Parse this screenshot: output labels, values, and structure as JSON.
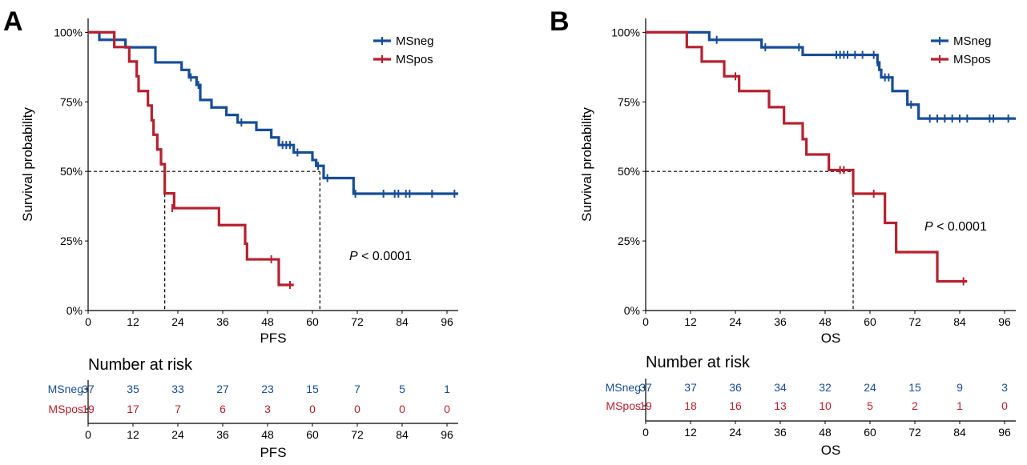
{
  "colors": {
    "MSneg": "#174d97",
    "MSpos": "#b6202e",
    "axis": "#000000"
  },
  "chart_data": [
    {
      "panel_label": "A",
      "type": "line",
      "ylabel": "Survival probability",
      "xlabel": "PFS",
      "xlim": [
        0,
        99
      ],
      "xticks": [
        "0",
        "12",
        "24",
        "36",
        "48",
        "60",
        "72",
        "84",
        "96"
      ],
      "ylim": [
        0,
        1.05
      ],
      "yticks": [
        "0%",
        "25%",
        "50%",
        "75%",
        "100%"
      ],
      "legend_position": "top-right",
      "p_value": {
        "label": "P",
        "value": " < 0.0001"
      },
      "median_lines": [
        20.5,
        62
      ],
      "series": [
        {
          "name": "MSneg",
          "color": "#174d97",
          "steps": [
            [
              0,
              1.0
            ],
            [
              3,
              0.973
            ],
            [
              10,
              0.946
            ],
            [
              18,
              0.892
            ],
            [
              25,
              0.865
            ],
            [
              27,
              0.838
            ],
            [
              29,
              0.811
            ],
            [
              30,
              0.757
            ],
            [
              33,
              0.73
            ],
            [
              37,
              0.703
            ],
            [
              40,
              0.676
            ],
            [
              45,
              0.649
            ],
            [
              49,
              0.622
            ],
            [
              51,
              0.595
            ],
            [
              55,
              0.568
            ],
            [
              60,
              0.541
            ],
            [
              61,
              0.52
            ],
            [
              63,
              0.476
            ],
            [
              71,
              0.42
            ]
          ],
          "end": 99,
          "censors": [
            [
              27.5,
              0.838
            ],
            [
              29.5,
              0.811
            ],
            [
              41,
              0.676
            ],
            [
              52,
              0.595
            ],
            [
              53,
              0.595
            ],
            [
              54,
              0.595
            ],
            [
              56,
              0.568
            ],
            [
              61.5,
              0.52
            ],
            [
              64,
              0.476
            ],
            [
              71.5,
              0.42
            ],
            [
              79,
              0.42
            ],
            [
              82,
              0.42
            ],
            [
              83,
              0.42
            ],
            [
              85,
              0.42
            ],
            [
              86,
              0.42
            ],
            [
              92,
              0.42
            ],
            [
              98,
              0.42
            ]
          ]
        },
        {
          "name": "MSpos",
          "color": "#b6202e",
          "steps": [
            [
              0,
              1.0
            ],
            [
              7,
              0.947
            ],
            [
              11,
              0.895
            ],
            [
              13,
              0.842
            ],
            [
              13.5,
              0.789
            ],
            [
              16,
              0.737
            ],
            [
              17,
              0.684
            ],
            [
              17.5,
              0.632
            ],
            [
              18.5,
              0.579
            ],
            [
              19.5,
              0.526
            ],
            [
              20.5,
              0.421
            ],
            [
              23,
              0.368
            ],
            [
              35,
              0.307
            ],
            [
              42,
              0.24
            ],
            [
              42.5,
              0.184
            ],
            [
              51,
              0.092
            ]
          ],
          "end": 55,
          "censors": [
            [
              22.5,
              0.368
            ],
            [
              49,
              0.184
            ],
            [
              54,
              0.092
            ]
          ]
        }
      ],
      "risk_table": {
        "title": "Number at risk",
        "xlabel": "PFS",
        "xticks": [
          "0",
          "12",
          "24",
          "36",
          "48",
          "60",
          "72",
          "84",
          "96"
        ],
        "rows": [
          {
            "name": "MSneg",
            "values": [
              "37",
              "35",
              "33",
              "27",
              "23",
              "15",
              "7",
              "5",
              "1"
            ]
          },
          {
            "name": "MSpos",
            "values": [
              "19",
              "17",
              "7",
              "6",
              "3",
              "0",
              "0",
              "0",
              "0"
            ]
          }
        ]
      }
    },
    {
      "panel_label": "B",
      "type": "line",
      "ylabel": "Survival probability",
      "xlabel": "OS",
      "xlim": [
        0,
        99
      ],
      "xticks": [
        "0",
        "12",
        "24",
        "36",
        "48",
        "60",
        "72",
        "84",
        "96"
      ],
      "ylim": [
        0,
        1.05
      ],
      "yticks": [
        "0%",
        "25%",
        "50%",
        "75%",
        "100%"
      ],
      "legend_position": "top-right",
      "p_value": {
        "label": "P",
        "value": " < 0.0001"
      },
      "median_lines": [
        55.5
      ],
      "series": [
        {
          "name": "MSneg",
          "color": "#174d97",
          "steps": [
            [
              0,
              1.0
            ],
            [
              17,
              0.973
            ],
            [
              31,
              0.946
            ],
            [
              42,
              0.919
            ],
            [
              62,
              0.892
            ],
            [
              62.5,
              0.865
            ],
            [
              63,
              0.838
            ],
            [
              66,
              0.789
            ],
            [
              70,
              0.74
            ],
            [
              73,
              0.69
            ]
          ],
          "end": 99,
          "censors": [
            [
              19,
              0.973
            ],
            [
              32,
              0.946
            ],
            [
              41,
              0.946
            ],
            [
              51,
              0.919
            ],
            [
              52,
              0.919
            ],
            [
              53,
              0.919
            ],
            [
              54,
              0.919
            ],
            [
              56,
              0.919
            ],
            [
              58,
              0.919
            ],
            [
              61,
              0.919
            ],
            [
              62,
              0.892
            ],
            [
              64,
              0.838
            ],
            [
              65,
              0.838
            ],
            [
              71,
              0.74
            ],
            [
              76,
              0.69
            ],
            [
              78,
              0.69
            ],
            [
              80,
              0.69
            ],
            [
              82,
              0.69
            ],
            [
              84,
              0.69
            ],
            [
              86,
              0.69
            ],
            [
              92,
              0.69
            ],
            [
              93,
              0.69
            ],
            [
              97,
              0.69
            ]
          ]
        },
        {
          "name": "MSpos",
          "color": "#b6202e",
          "steps": [
            [
              0,
              1.0
            ],
            [
              11,
              0.947
            ],
            [
              15,
              0.895
            ],
            [
              21,
              0.842
            ],
            [
              25,
              0.789
            ],
            [
              33,
              0.731
            ],
            [
              37,
              0.673
            ],
            [
              42,
              0.616
            ],
            [
              43,
              0.561
            ],
            [
              49,
              0.505
            ],
            [
              55.5,
              0.42
            ],
            [
              64,
              0.315
            ],
            [
              67,
              0.21
            ],
            [
              78,
              0.105
            ]
          ],
          "end": 86,
          "censors": [
            [
              24,
              0.842
            ],
            [
              52,
              0.505
            ],
            [
              53,
              0.505
            ],
            [
              61,
              0.42
            ],
            [
              85,
              0.105
            ]
          ]
        }
      ],
      "risk_table": {
        "title": "Number at risk",
        "xlabel": "OS",
        "xticks": [
          "0",
          "12",
          "24",
          "36",
          "48",
          "60",
          "72",
          "84",
          "96"
        ],
        "rows": [
          {
            "name": "MSneg",
            "values": [
              "37",
              "37",
              "36",
              "34",
              "32",
              "24",
              "15",
              "9",
              "3"
            ]
          },
          {
            "name": "MSpos",
            "values": [
              "19",
              "18",
              "16",
              "13",
              "10",
              "5",
              "2",
              "1",
              "0"
            ]
          }
        ]
      }
    }
  ]
}
